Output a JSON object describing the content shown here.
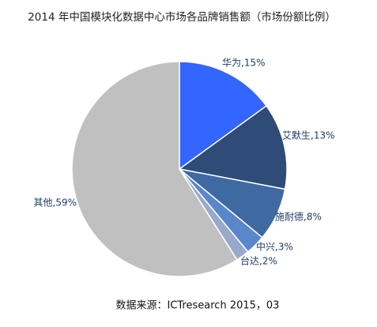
{
  "chart_data": {
    "type": "pie",
    "title": "2014 年中国模块化数据中心市场各品牌销售额（市场份额比例）",
    "values": [
      15,
      13,
      8,
      3,
      2,
      59
    ],
    "value_labels": [
      "华为,15%",
      "艾默生,13%",
      "施耐德,8%",
      "中兴,3%",
      "台达,2%",
      "其他,59%"
    ],
    "colors": [
      "#3366ff",
      "#2f4b78",
      "#3e69a1",
      "#5a86cb",
      "#98a9cc",
      "#c0c0c0"
    ],
    "source": "数据来源：ICTresearch 2015，03"
  }
}
